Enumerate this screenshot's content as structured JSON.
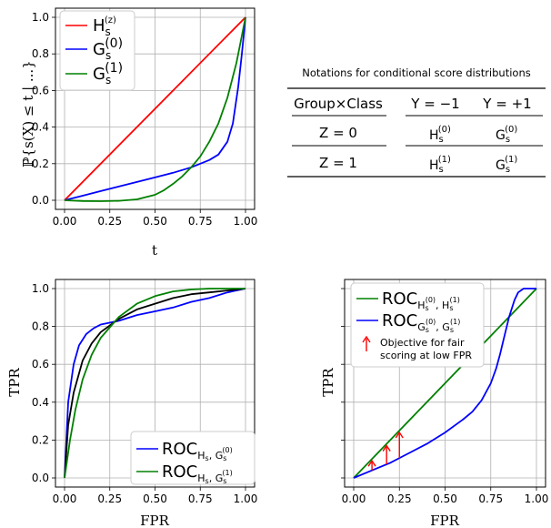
{
  "chart_data": [
    {
      "type": "line",
      "panel": "top-left",
      "xlabel": "t",
      "ylabel": "ℙ{s(X) ≤ t | ...}",
      "xlim": [
        0,
        1
      ],
      "ylim": [
        0,
        1
      ],
      "xticks": [
        "0.00",
        "0.25",
        "0.50",
        "0.75",
        "1.00"
      ],
      "yticks": [
        "0.0",
        "0.2",
        "0.4",
        "0.6",
        "0.8",
        "1.0"
      ],
      "grid": true,
      "legend_position": "top-left",
      "series": [
        {
          "name": "H_s^(z)",
          "color": "#ff0000",
          "x": [
            0,
            1
          ],
          "y": [
            0,
            1
          ]
        },
        {
          "name": "G_s^(0)",
          "color": "#0000ff",
          "x": [
            0,
            0.1,
            0.2,
            0.3,
            0.4,
            0.5,
            0.6,
            0.7,
            0.75,
            0.8,
            0.85,
            0.9,
            0.93,
            0.96,
            0.98,
            1.0
          ],
          "y": [
            0,
            0.025,
            0.05,
            0.075,
            0.1,
            0.125,
            0.15,
            0.18,
            0.2,
            0.22,
            0.25,
            0.32,
            0.42,
            0.62,
            0.8,
            1.0
          ]
        },
        {
          "name": "G_s^(1)",
          "color": "#008000",
          "x": [
            0,
            0.1,
            0.2,
            0.3,
            0.4,
            0.5,
            0.55,
            0.6,
            0.65,
            0.7,
            0.75,
            0.8,
            0.85,
            0.9,
            0.95,
            1.0
          ],
          "y": [
            0,
            -0.004,
            -0.005,
            -0.003,
            0.005,
            0.03,
            0.055,
            0.09,
            0.13,
            0.18,
            0.24,
            0.32,
            0.42,
            0.56,
            0.75,
            1.0
          ]
        }
      ]
    },
    {
      "type": "line",
      "panel": "bottom-left",
      "xlabel": "FPR",
      "ylabel": "TPR",
      "xlim": [
        0,
        1
      ],
      "ylim": [
        0,
        1
      ],
      "xticks": [
        "0.00",
        "0.25",
        "0.50",
        "0.75",
        "1.00"
      ],
      "yticks": [
        "0.0",
        "0.2",
        "0.4",
        "0.6",
        "0.8",
        "1.0"
      ],
      "grid": true,
      "legend_position": "bottom-right",
      "series": [
        {
          "name": "ROC_{H_s, G_s^(0)}",
          "color": "#0000ff",
          "x": [
            0,
            0.02,
            0.05,
            0.08,
            0.12,
            0.16,
            0.2,
            0.3,
            0.4,
            0.5,
            0.6,
            0.7,
            0.8,
            0.9,
            1.0
          ],
          "y": [
            0,
            0.4,
            0.6,
            0.7,
            0.76,
            0.79,
            0.81,
            0.83,
            0.86,
            0.88,
            0.9,
            0.93,
            0.95,
            0.98,
            1.0
          ]
        },
        {
          "name": "",
          "color": "#000000",
          "x": [
            0,
            0.02,
            0.05,
            0.1,
            0.15,
            0.2,
            0.3,
            0.4,
            0.5,
            0.6,
            0.7,
            0.8,
            0.9,
            1.0
          ],
          "y": [
            0,
            0.28,
            0.45,
            0.62,
            0.71,
            0.77,
            0.84,
            0.89,
            0.92,
            0.95,
            0.97,
            0.98,
            0.99,
            1.0
          ]
        },
        {
          "name": "ROC_{H_s, G_s^(1)}",
          "color": "#008000",
          "x": [
            0,
            0.03,
            0.06,
            0.1,
            0.15,
            0.2,
            0.3,
            0.4,
            0.5,
            0.6,
            0.7,
            0.8,
            0.9,
            1.0
          ],
          "y": [
            0,
            0.2,
            0.36,
            0.52,
            0.65,
            0.74,
            0.85,
            0.92,
            0.96,
            0.985,
            0.995,
            1.0,
            1.0,
            1.0
          ]
        }
      ]
    },
    {
      "type": "line",
      "panel": "bottom-right",
      "xlabel": "FPR",
      "ylabel": "TPR",
      "xlim": [
        0,
        1
      ],
      "ylim": [
        0,
        1
      ],
      "xticks": [
        "0.00",
        "0.25",
        "0.50",
        "0.75",
        "1.00"
      ],
      "yticks": [],
      "grid": true,
      "legend_position": "top-left",
      "series": [
        {
          "name": "ROC_{H_s^(0), H_s^(1)}",
          "color": "#008000",
          "x": [
            0,
            1
          ],
          "y": [
            0,
            1
          ]
        },
        {
          "name": "ROC_{G_s^(0), G_s^(1)}",
          "color": "#0000ff",
          "x": [
            0,
            0.1,
            0.2,
            0.3,
            0.4,
            0.5,
            0.6,
            0.65,
            0.7,
            0.75,
            0.78,
            0.8,
            0.82,
            0.85,
            0.88,
            0.9,
            0.93,
            0.96,
            1.0
          ],
          "y": [
            0,
            0.04,
            0.08,
            0.13,
            0.18,
            0.24,
            0.31,
            0.35,
            0.41,
            0.5,
            0.58,
            0.65,
            0.73,
            0.85,
            0.94,
            0.98,
            1.0,
            1.0,
            1.0
          ]
        }
      ],
      "annotations": {
        "arrow_label_line1": "Objective for fair",
        "arrow_label_line2": "scoring at low FPR",
        "arrow_color": "#ff0000",
        "arrows_x": [
          0.1,
          0.18,
          0.25
        ]
      }
    }
  ],
  "table": {
    "title": "Notations for conditional score distributions",
    "col_header_group": "Group×Class",
    "col_header_neg": "Y = −1",
    "col_header_pos": "Y = +1",
    "rows": [
      {
        "group": "Z = 0",
        "neg": "H_s^(0)",
        "pos": "G_s^(0)"
      },
      {
        "group": "Z = 1",
        "neg": "H_s^(1)",
        "pos": "G_s^(1)"
      }
    ]
  },
  "legends": {
    "tl": [
      "H",
      "s",
      "(z)",
      "G",
      "s",
      "(0)",
      "G",
      "s",
      "(1)"
    ],
    "bl": [
      "ROC",
      "H",
      "s",
      ", G",
      "s",
      "(0)",
      "ROC",
      "H",
      "s",
      ", G",
      "s",
      "(1)"
    ],
    "br": [
      "ROC",
      "H",
      "s",
      "(0)",
      ", H",
      "s",
      "(1)",
      "ROC",
      "G",
      "s",
      "(0)",
      ", G",
      "s",
      "(1)"
    ]
  }
}
